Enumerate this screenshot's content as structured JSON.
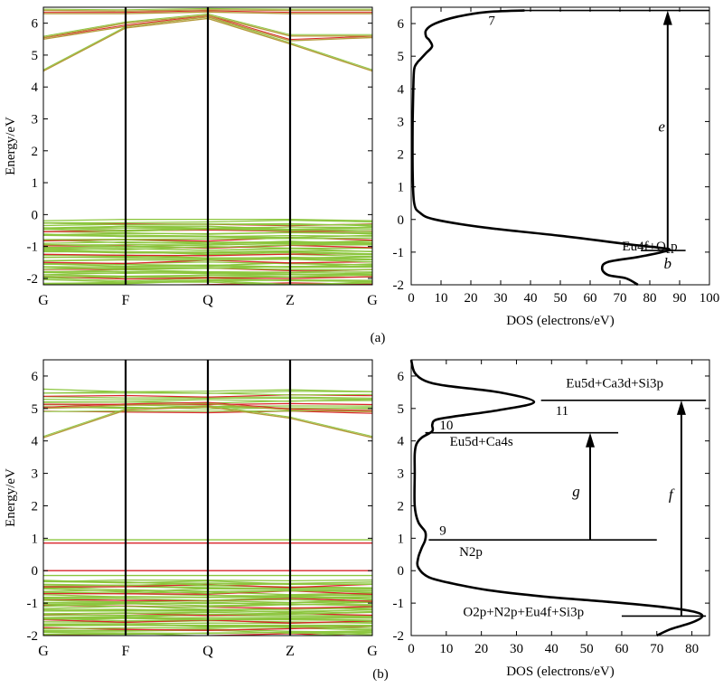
{
  "chart_data": [
    {
      "type": "line",
      "subtype": "band-structure",
      "panel_label": "(a)",
      "ylabel": "Energy/eV",
      "ylim": [
        -2.2,
        6.5
      ],
      "yticks": [
        -2,
        -1,
        0,
        1,
        2,
        3,
        4,
        5,
        6
      ],
      "kpoints": [
        "G",
        "F",
        "Q",
        "Z",
        "G"
      ],
      "colors": {
        "band_green": "#8cc63f",
        "band_red": "#d9252a"
      },
      "conduction_bands": [
        [
          4.5,
          5.85,
          6.15,
          5.35,
          4.5
        ],
        [
          5.5,
          5.9,
          6.2,
          5.45,
          5.55
        ],
        [
          5.55,
          6.0,
          6.25,
          5.6,
          5.6
        ],
        [
          6.3,
          6.3,
          6.35,
          6.3,
          6.3
        ],
        [
          6.4,
          6.38,
          6.42,
          6.4,
          6.4
        ]
      ],
      "valence_region": {
        "top": -0.2,
        "bottom": -2.2,
        "band_count": 60
      }
    },
    {
      "type": "line",
      "subtype": "dos",
      "panel_label": "(a)",
      "xlabel": "DOS (electrons/eV)",
      "xlim": [
        0,
        100
      ],
      "xticks": [
        0,
        10,
        20,
        30,
        40,
        50,
        60,
        70,
        80,
        90,
        100
      ],
      "ylim": [
        -2,
        6.5
      ],
      "yticks": [
        -2,
        -1,
        0,
        1,
        2,
        3,
        4,
        5,
        6
      ],
      "series": [
        {
          "x": [
            76,
            72,
            66,
            64,
            66,
            76,
            84,
            86,
            72,
            50,
            25,
            8,
            3,
            1,
            0.5,
            0.5,
            0.7,
            1,
            2,
            3,
            5,
            7,
            6,
            5,
            5,
            8,
            15,
            25,
            38
          ],
          "y": [
            -2.0,
            -1.8,
            -1.7,
            -1.5,
            -1.3,
            -1.15,
            -1.0,
            -0.9,
            -0.75,
            -0.5,
            -0.25,
            0.0,
            0.2,
            0.5,
            1.5,
            3.0,
            4.0,
            4.6,
            4.8,
            4.9,
            5.1,
            5.3,
            5.5,
            5.6,
            5.8,
            6.0,
            6.2,
            6.35,
            6.4
          ]
        }
      ],
      "annotations": [
        {
          "text": "7",
          "x": 27,
          "y": 6.05
        },
        {
          "text": "e",
          "x": 84,
          "y": 2.8
        },
        {
          "text": "b",
          "x": 86,
          "y": -1.4
        },
        {
          "text": "Eu4f+O₂p",
          "x": 80,
          "y": -0.85
        }
      ],
      "levels": [
        {
          "y": 6.4,
          "x_from": 36,
          "x_to": 100
        },
        {
          "y": -0.95,
          "x_from": 77,
          "x_to": 92
        }
      ],
      "arrow": {
        "x": 86,
        "y_from": -0.95,
        "y_to": 6.4
      }
    },
    {
      "type": "line",
      "subtype": "band-structure",
      "panel_label": "(b)",
      "ylabel": "Energy/eV",
      "ylim": [
        -2,
        6.5
      ],
      "yticks": [
        -2,
        -1,
        0,
        1,
        2,
        3,
        4,
        5,
        6
      ],
      "kpoints": [
        "G",
        "F",
        "Q",
        "Z",
        "G"
      ],
      "colors": {
        "band_green": "#8cc63f",
        "band_red": "#d9252a"
      },
      "conduction_bands": [
        [
          4.1,
          4.95,
          5.05,
          4.7,
          4.1
        ],
        [
          5.0,
          5.1,
          5.15,
          4.95,
          4.9
        ]
      ],
      "conduction_cluster": {
        "top": 5.55,
        "bottom": 4.9,
        "band_count": 14
      },
      "impurity_bands": [
        0.85,
        0.95,
        0.0,
        -0.15
      ],
      "valence_region": {
        "top": -0.3,
        "bottom": -2.0,
        "band_count": 55
      }
    },
    {
      "type": "line",
      "subtype": "dos",
      "panel_label": "(b)",
      "xlabel": "DOS (electrons/eV)",
      "xlim": [
        0,
        85
      ],
      "xticks": [
        0,
        10,
        20,
        30,
        40,
        50,
        60,
        70,
        80
      ],
      "ylim": [
        -2,
        6.5
      ],
      "yticks": [
        -2,
        -1,
        0,
        1,
        2,
        3,
        4,
        5,
        6
      ],
      "series": [
        {
          "x": [
            70,
            74,
            80,
            83,
            80,
            70,
            55,
            38,
            22,
            12,
            5,
            2,
            2,
            3,
            4,
            4,
            2,
            1,
            1,
            1,
            1.5,
            3,
            6,
            6,
            7,
            12,
            25,
            35,
            25,
            10,
            4,
            1,
            0
          ],
          "y": [
            -2.0,
            -1.8,
            -1.6,
            -1.4,
            -1.25,
            -1.1,
            -0.95,
            -0.8,
            -0.6,
            -0.4,
            -0.2,
            0.1,
            0.4,
            0.7,
            0.95,
            1.2,
            1.5,
            2.0,
            3.0,
            3.6,
            3.9,
            4.1,
            4.3,
            4.5,
            4.65,
            4.75,
            4.95,
            5.2,
            5.5,
            5.7,
            5.85,
            6.1,
            6.5
          ]
        }
      ],
      "annotations": [
        {
          "text": "Eu5d+Ca3d+Si3p",
          "x": 58,
          "y": 5.75
        },
        {
          "text": "11",
          "x": 43,
          "y": 4.9
        },
        {
          "text": "10",
          "x": 10,
          "y": 4.45
        },
        {
          "text": "Eu5d+Ca4s",
          "x": 20,
          "y": 3.95
        },
        {
          "text": "g",
          "x": 47,
          "y": 2.4
        },
        {
          "text": "f",
          "x": 74,
          "y": 2.3
        },
        {
          "text": "9",
          "x": 9,
          "y": 1.2
        },
        {
          "text": "N2p",
          "x": 17,
          "y": 0.55
        },
        {
          "text": "O2p+N2p+Eu4f+Si3p",
          "x": 32,
          "y": -1.3
        }
      ],
      "levels": [
        {
          "y": 5.25,
          "x_from": 37,
          "x_to": 84
        },
        {
          "y": 4.25,
          "x_from": 4,
          "x_to": 59
        },
        {
          "y": 0.95,
          "x_from": 5,
          "x_to": 70
        },
        {
          "y": -1.4,
          "x_from": 60,
          "x_to": 84
        }
      ],
      "arrows": [
        {
          "x": 51,
          "y_from": 0.95,
          "y_to": 4.25
        },
        {
          "x": 77,
          "y_from": -1.4,
          "y_to": 5.25
        }
      ]
    }
  ]
}
